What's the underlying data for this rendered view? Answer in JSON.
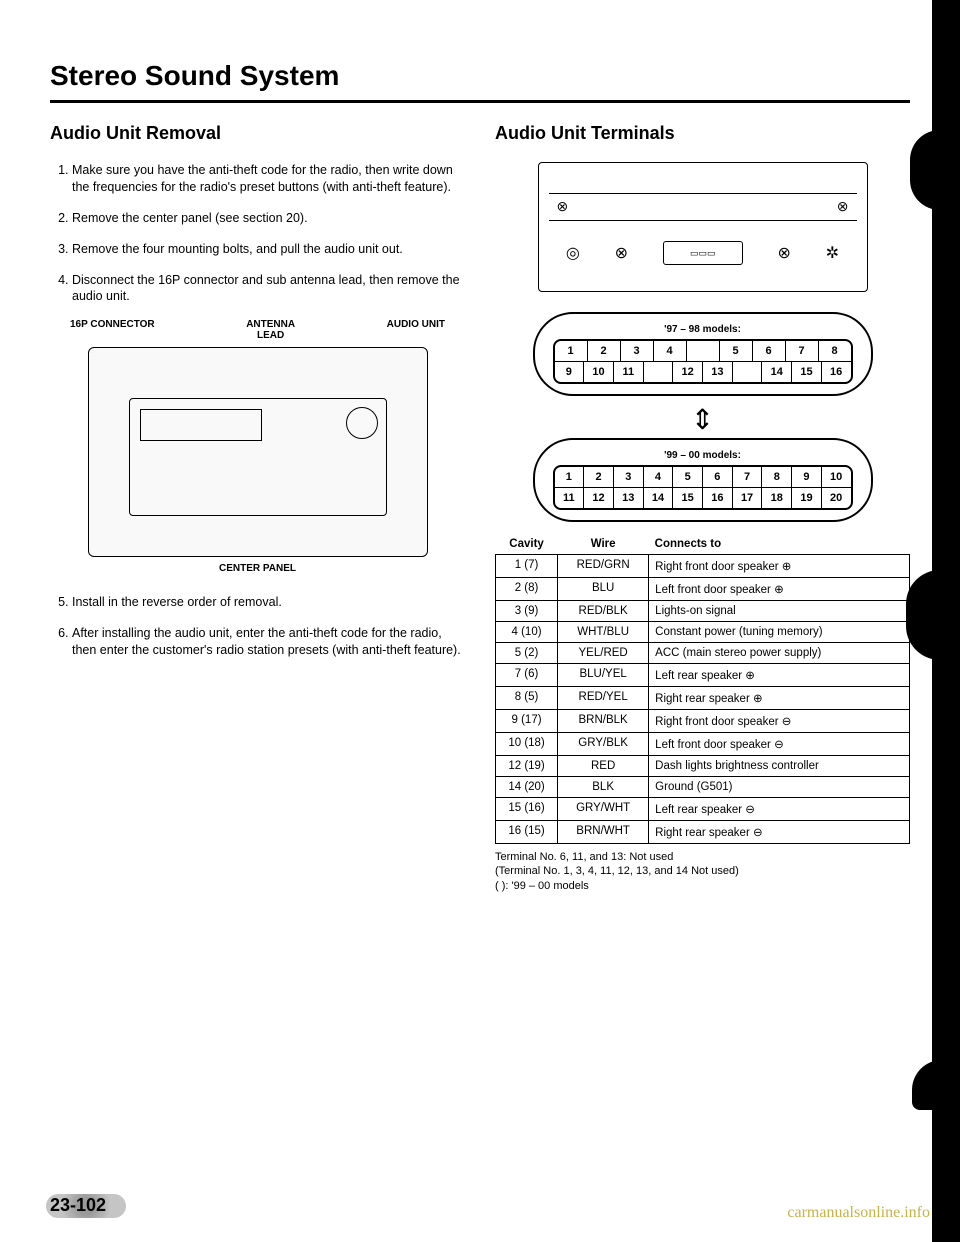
{
  "page_title": "Stereo Sound System",
  "left": {
    "heading": "Audio Unit Removal",
    "steps": [
      "Make sure you have the anti-theft code for the radio, then write down the frequencies for the radio's preset buttons (with anti-theft feature).",
      "Remove the center panel (see section 20).",
      "Remove the four mounting bolts, and pull the audio unit out.",
      "Disconnect the 16P connector and sub antenna lead, then remove the audio unit."
    ],
    "figure_labels": {
      "left": "16P CONNECTOR",
      "mid": "ANTENNA\nLEAD",
      "right": "AUDIO UNIT",
      "caption": "CENTER PANEL"
    },
    "steps_after": [
      "Install in the reverse order of removal.",
      "After installing the audio unit, enter the anti-theft code for the radio, then enter the customer's radio station presets (with anti-theft feature)."
    ]
  },
  "right": {
    "heading": "Audio Unit Terminals",
    "pin97": {
      "label": "'97 – 98 models:",
      "row1": [
        "1",
        "2",
        "3",
        "4",
        "",
        "5",
        "6",
        "7",
        "8"
      ],
      "row2": [
        "9",
        "10",
        "11",
        "",
        "12",
        "13",
        "",
        "14",
        "15",
        "16"
      ]
    },
    "pin99": {
      "label": "'99 – 00 models:",
      "row1": [
        "1",
        "2",
        "3",
        "4",
        "5",
        "6",
        "7",
        "8",
        "9",
        "10"
      ],
      "row2": [
        "11",
        "12",
        "13",
        "14",
        "15",
        "16",
        "17",
        "18",
        "19",
        "20"
      ]
    },
    "table_headers": {
      "cavity": "Cavity",
      "wire": "Wire",
      "connects": "Connects to"
    },
    "wires": [
      {
        "cav": "1 (7)",
        "wire": "RED/GRN",
        "conn": "Right front door speaker ⊕"
      },
      {
        "cav": "2 (8)",
        "wire": "BLU",
        "conn": "Left front door speaker ⊕"
      },
      {
        "cav": "3 (9)",
        "wire": "RED/BLK",
        "conn": "Lights-on signal"
      },
      {
        "cav": "4 (10)",
        "wire": "WHT/BLU",
        "conn": "Constant power (tuning memory)"
      },
      {
        "cav": "5 (2)",
        "wire": "YEL/RED",
        "conn": "ACC (main stereo power supply)"
      },
      {
        "cav": "7 (6)",
        "wire": "BLU/YEL",
        "conn": "Left rear speaker ⊕"
      },
      {
        "cav": "8 (5)",
        "wire": "RED/YEL",
        "conn": "Right rear speaker ⊕"
      },
      {
        "cav": "9 (17)",
        "wire": "BRN/BLK",
        "conn": "Right front door speaker ⊖"
      },
      {
        "cav": "10 (18)",
        "wire": "GRY/BLK",
        "conn": "Left front door speaker ⊖"
      },
      {
        "cav": "12 (19)",
        "wire": "RED",
        "conn": "Dash lights brightness controller"
      },
      {
        "cav": "14 (20)",
        "wire": "BLK",
        "conn": "Ground (G501)"
      },
      {
        "cav": "15 (16)",
        "wire": "GRY/WHT",
        "conn": "Left rear speaker ⊖"
      },
      {
        "cav": "16 (15)",
        "wire": "BRN/WHT",
        "conn": "Right rear speaker ⊖"
      }
    ],
    "footnotes": [
      "Terminal No. 6, 11, and 13: Not used",
      "(Terminal No. 1, 3, 4, 11, 12, 13, and 14 Not used)",
      "( ): '99 – 00 models"
    ]
  },
  "page_number": "23-102",
  "watermark": "carmanualsonline.info"
}
